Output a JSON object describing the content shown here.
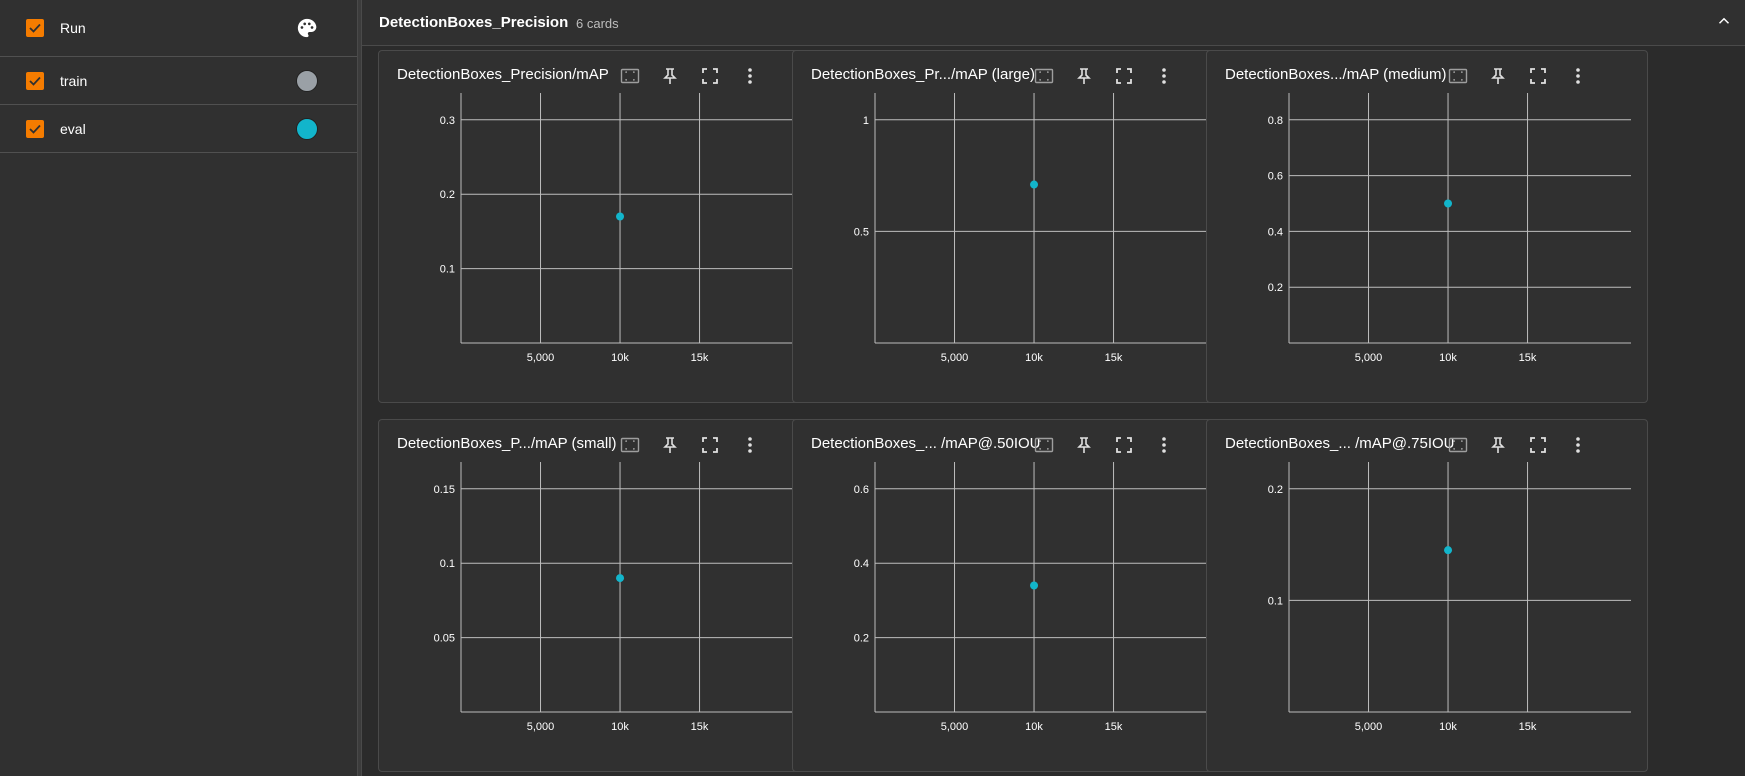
{
  "sidebar": {
    "header": {
      "label": "Run"
    },
    "runs": [
      {
        "label": "train",
        "color": "#9aa0a6"
      },
      {
        "label": "eval",
        "color": "#12b5cb"
      }
    ]
  },
  "group": {
    "title": "DetectionBoxes_Precision",
    "count": "6 cards"
  },
  "colors": {
    "accent": "#f57c00",
    "eval": "#12b5cb",
    "train": "#9aa0a6",
    "grid": "#bdbdbd"
  },
  "cards": [
    {
      "title": "DetectionBoxes_Precision/mAP"
    },
    {
      "title": "DetectionBoxes_Pr.../mAP (large)"
    },
    {
      "title": "DetectionBoxes.../mAP (medium)"
    },
    {
      "title": "DetectionBoxes_P.../mAP (small)"
    },
    {
      "title": "DetectionBoxes_... /mAP@.50IOU"
    },
    {
      "title": "DetectionBoxes_... /mAP@.75IOU"
    }
  ],
  "chart_data": [
    {
      "type": "scatter",
      "title": "DetectionBoxes_Precision/mAP",
      "x_ticks": [
        "5,000",
        "10k",
        "15k"
      ],
      "y_ticks": [
        "0.1",
        "0.2",
        "0.3"
      ],
      "xlim": [
        0,
        20000
      ],
      "ylim": [
        0,
        0.3
      ],
      "grid": true,
      "series": [
        {
          "name": "eval",
          "x": [
            10000
          ],
          "y": [
            0.17
          ]
        }
      ]
    },
    {
      "type": "scatter",
      "title": "DetectionBoxes_Pr.../mAP (large)",
      "x_ticks": [
        "5,000",
        "10k",
        "15k"
      ],
      "y_ticks": [
        "0.5",
        "1"
      ],
      "xlim": [
        0,
        20000
      ],
      "ylim": [
        0,
        1
      ],
      "grid": true,
      "series": [
        {
          "name": "eval",
          "x": [
            10000
          ],
          "y": [
            0.71
          ]
        }
      ]
    },
    {
      "type": "scatter",
      "title": "DetectionBoxes.../mAP (medium)",
      "x_ticks": [
        "5,000",
        "10k",
        "15k"
      ],
      "y_ticks": [
        "0.2",
        "0.4",
        "0.6",
        "0.8"
      ],
      "xlim": [
        0,
        20000
      ],
      "ylim": [
        0,
        0.8
      ],
      "grid": true,
      "series": [
        {
          "name": "eval",
          "x": [
            10000
          ],
          "y": [
            0.5
          ]
        }
      ]
    },
    {
      "type": "scatter",
      "title": "DetectionBoxes_P.../mAP (small)",
      "x_ticks": [
        "5,000",
        "10k",
        "15k"
      ],
      "y_ticks": [
        "0.05",
        "0.1",
        "0.15"
      ],
      "xlim": [
        0,
        20000
      ],
      "ylim": [
        0,
        0.15
      ],
      "grid": true,
      "series": [
        {
          "name": "eval",
          "x": [
            10000
          ],
          "y": [
            0.09
          ]
        }
      ]
    },
    {
      "type": "scatter",
      "title": "DetectionBoxes_... /mAP@.50IOU",
      "x_ticks": [
        "5,000",
        "10k",
        "15k"
      ],
      "y_ticks": [
        "0.2",
        "0.4",
        "0.6"
      ],
      "xlim": [
        0,
        20000
      ],
      "ylim": [
        0,
        0.6
      ],
      "grid": true,
      "series": [
        {
          "name": "eval",
          "x": [
            10000
          ],
          "y": [
            0.34
          ]
        }
      ]
    },
    {
      "type": "scatter",
      "title": "DetectionBoxes_... /mAP@.75IOU",
      "x_ticks": [
        "5,000",
        "10k",
        "15k"
      ],
      "y_ticks": [
        "0.1",
        "0.2"
      ],
      "xlim": [
        0,
        20000
      ],
      "ylim": [
        0,
        0.2
      ],
      "grid": true,
      "series": [
        {
          "name": "eval",
          "x": [
            10000
          ],
          "y": [
            0.145
          ]
        }
      ]
    }
  ]
}
